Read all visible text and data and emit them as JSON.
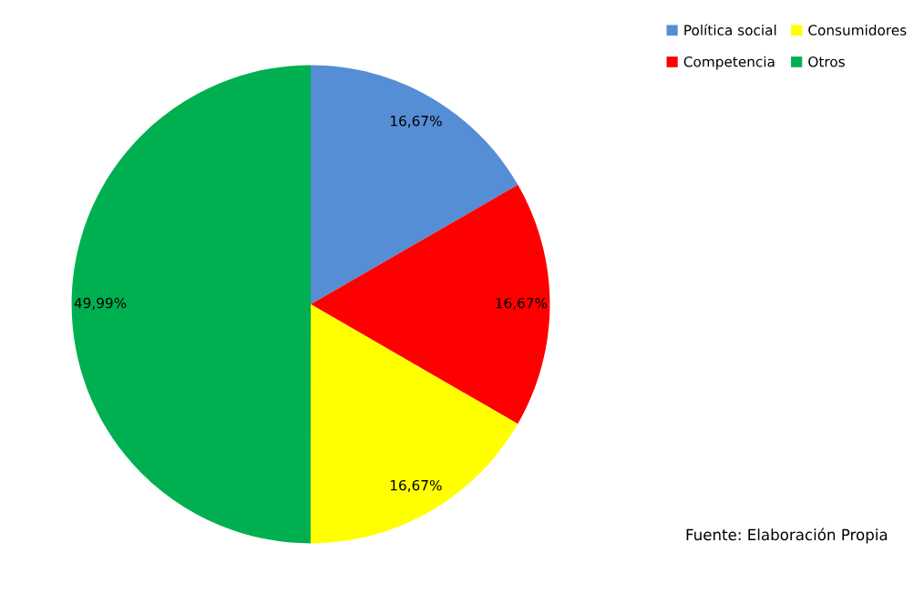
{
  "chart_data": {
    "type": "pie",
    "categories": [
      "Política social",
      "Competencia",
      "Consumidores",
      "Otros"
    ],
    "values": [
      16.67,
      16.67,
      16.67,
      49.99
    ],
    "value_labels": [
      "16,67%",
      "16,67%",
      "16,67%",
      "49,99%"
    ],
    "colors": [
      "#558ed5",
      "#ff0000",
      "#ffff00",
      "#00b050"
    ],
    "legend": "top right",
    "annotations": [
      "Fuente: Elaboración Propia"
    ]
  }
}
